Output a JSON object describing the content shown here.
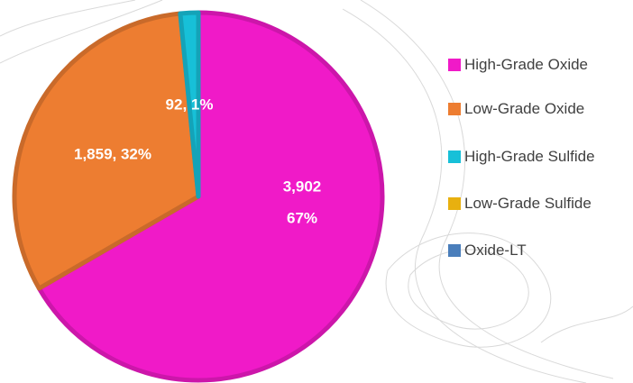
{
  "chart_data": {
    "type": "pie",
    "categories": [
      "High-Grade Oxide",
      "Low-Grade Oxide",
      "High-Grade Sulfide",
      "Low-Grade Sulfide",
      "Oxide-LT"
    ],
    "values": [
      3902,
      1859,
      92,
      0,
      0
    ],
    "value_labels": [
      [
        "3,902",
        "67%"
      ],
      [
        "1,859, 32%"
      ],
      [
        "92, 1%"
      ],
      null,
      null
    ],
    "colors": [
      "#f01ac8",
      "#ed7d31",
      "#17c0d8",
      "#e8b00f",
      "#4a7ebb"
    ],
    "legend": "right"
  }
}
